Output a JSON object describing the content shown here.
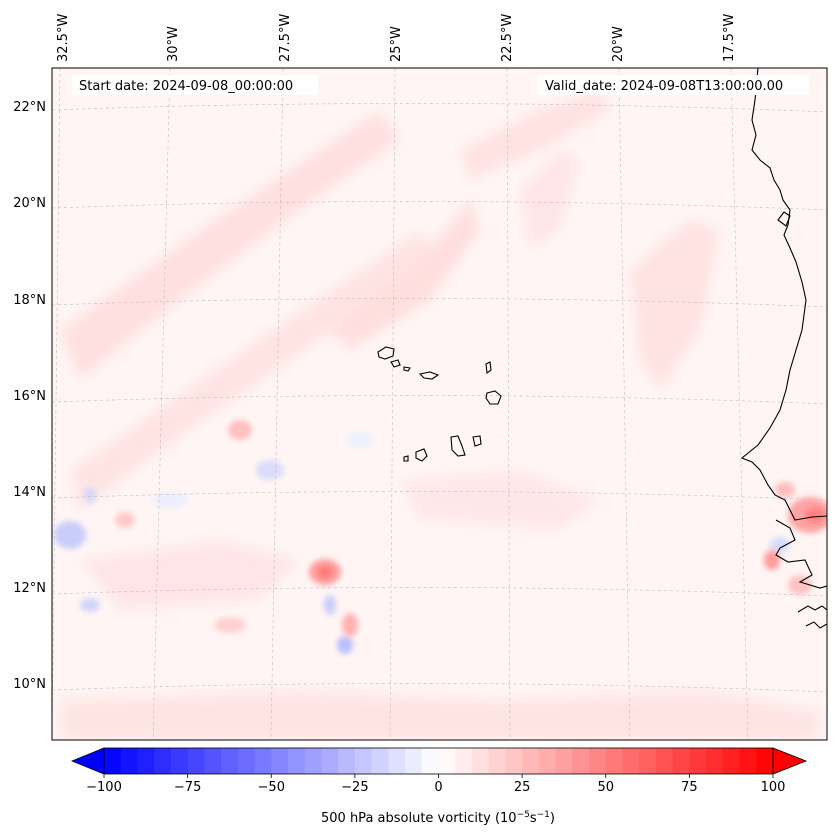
{
  "header": {
    "start_date": "Start date: 2024-09-08_00:00:00",
    "valid_date": "Valid_date: 2024-09-08T13:00:00.00"
  },
  "map": {
    "projection": "lambert-conic",
    "lon_labels": [
      "32.5°W",
      "30°W",
      "27.5°W",
      "25°W",
      "22.5°W",
      "20°W",
      "17.5°W"
    ],
    "lat_labels": [
      "22°N",
      "20°N",
      "18°N",
      "16°N",
      "14°N",
      "12°N",
      "10°N"
    ],
    "coastline_color": "#000000",
    "gridline_color": "#bdbdbd"
  },
  "colorbar": {
    "label_main": "500 hPa absolute vorticity (10",
    "label_exp1": "−5",
    "label_mid": "s",
    "label_exp2": "−1",
    "label_end": ")",
    "ticks": [
      "−100",
      "−75",
      "−50",
      "−25",
      "0",
      "25",
      "50",
      "75",
      "100"
    ],
    "vmin": -100,
    "vmax": 100,
    "levels": 41,
    "cmap": "bwr",
    "extend": "both"
  }
}
